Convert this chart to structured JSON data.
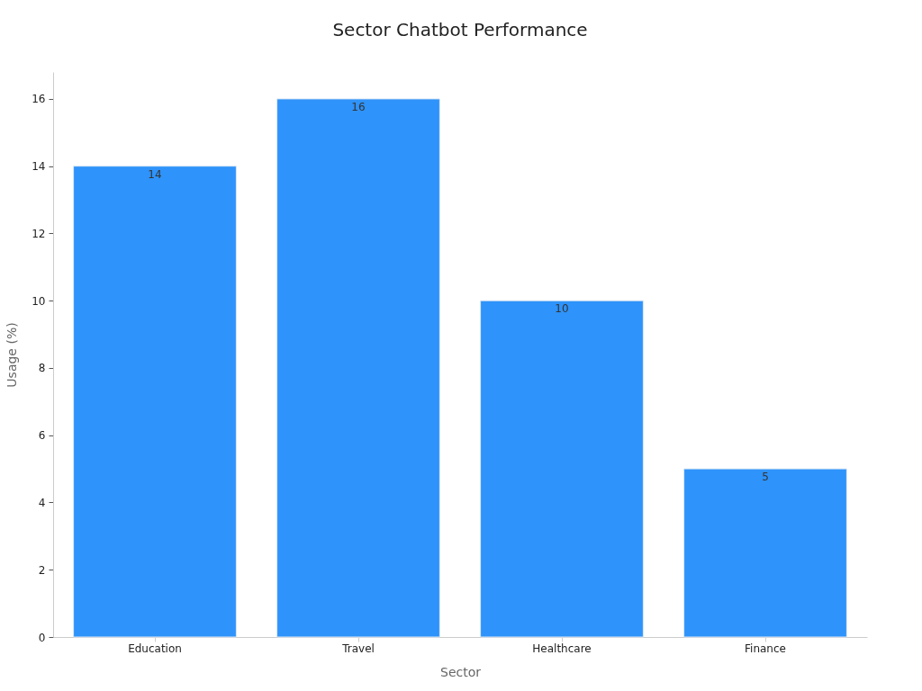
{
  "chart_data": {
    "type": "bar",
    "title": "Sector Chatbot Performance",
    "xlabel": "Sector",
    "ylabel": "Usage (%)",
    "categories": [
      "Education",
      "Travel",
      "Healthcare",
      "Finance"
    ],
    "values": [
      14,
      16,
      10,
      5
    ],
    "color": "#2e93fa",
    "ylim": [
      0,
      16.8
    ],
    "yticks": [
      0,
      2,
      4,
      6,
      8,
      10,
      12,
      14,
      16
    ],
    "data_labels": true
  }
}
